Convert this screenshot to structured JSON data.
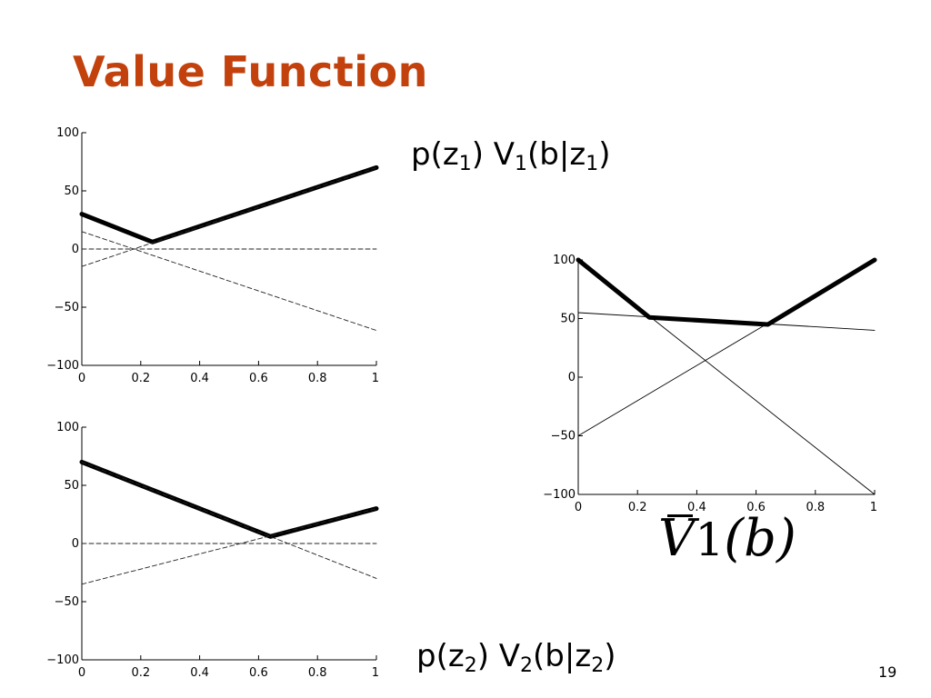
{
  "slide": {
    "title": "Value Function",
    "page_number": "19",
    "title_color": "#c2410c"
  },
  "labels": {
    "top": {
      "p": "p(z",
      "s1": "1",
      "mid": ") V",
      "s2": "1",
      "b": "(b|z",
      "s3": "1",
      "end": ")"
    },
    "bottom": {
      "p": "p(z",
      "s1": "2",
      "mid": ") V",
      "s2": "2",
      "b": "(b|z",
      "s3": "2",
      "end": ")"
    },
    "right": {
      "v": "V",
      "sub": "1",
      "arg": "(b)"
    }
  },
  "chart_data": [
    {
      "type": "line",
      "title": "",
      "xlabel": "",
      "ylabel": "",
      "xlim": [
        0,
        1
      ],
      "ylim": [
        -100,
        100
      ],
      "xticks": [
        "0",
        "0.2",
        "0.4",
        "0.6",
        "0.8",
        "1"
      ],
      "yticks": [
        "100",
        "50",
        "0",
        "−50",
        "−100"
      ],
      "series": [
        {
          "style": "thick",
          "x": [
            0,
            0.24,
            1
          ],
          "y": [
            30,
            6,
            70
          ]
        },
        {
          "style": "dashed",
          "x": [
            0,
            1
          ],
          "y": [
            0,
            0
          ]
        },
        {
          "style": "dashed",
          "x": [
            0,
            1
          ],
          "y": [
            -15,
            70
          ]
        },
        {
          "style": "dashed",
          "x": [
            0,
            1
          ],
          "y": [
            15,
            -70
          ]
        }
      ]
    },
    {
      "type": "line",
      "title": "",
      "xlabel": "",
      "ylabel": "",
      "xlim": [
        0,
        1
      ],
      "ylim": [
        -100,
        100
      ],
      "xticks": [
        "0",
        "0.2",
        "0.4",
        "0.6",
        "0.8",
        "1"
      ],
      "yticks": [
        "100",
        "50",
        "0",
        "−50",
        "−100"
      ],
      "series": [
        {
          "style": "thick",
          "x": [
            0,
            0.64,
            1
          ],
          "y": [
            70,
            6,
            30
          ]
        },
        {
          "style": "dashed",
          "x": [
            0,
            1
          ],
          "y": [
            0,
            0
          ]
        },
        {
          "style": "dashed",
          "x": [
            0,
            1
          ],
          "y": [
            -35,
            30
          ]
        },
        {
          "style": "dashed",
          "x": [
            0,
            1
          ],
          "y": [
            70,
            -30
          ]
        }
      ]
    },
    {
      "type": "line",
      "title": "",
      "xlabel": "",
      "ylabel": "",
      "xlim": [
        0,
        1
      ],
      "ylim": [
        -100,
        100
      ],
      "xticks": [
        "0",
        "0.2",
        "0.4",
        "0.6",
        "0.8",
        "1"
      ],
      "yticks": [
        "100",
        "50",
        "0",
        "−50",
        "−100"
      ],
      "series": [
        {
          "style": "thick",
          "x": [
            0,
            0.24,
            0.64,
            1
          ],
          "y": [
            100,
            51,
            45,
            100
          ]
        },
        {
          "style": "thin",
          "x": [
            0,
            1
          ],
          "y": [
            55,
            40
          ]
        },
        {
          "style": "thin",
          "x": [
            0,
            1
          ],
          "y": [
            100,
            -100
          ]
        },
        {
          "style": "thin",
          "x": [
            0,
            1
          ],
          "y": [
            -50,
            100
          ]
        }
      ]
    }
  ]
}
